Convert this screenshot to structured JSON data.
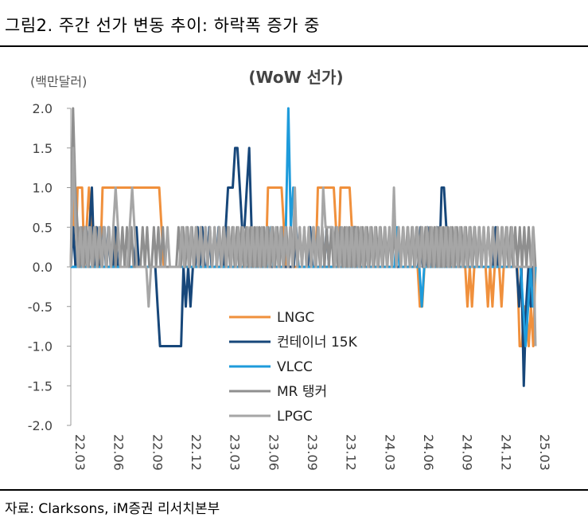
{
  "figure_title": "그림2.   주간 선가 변동 추이: 하락폭 증가 중",
  "source": "자료: Clarksons, iM증권 리서치본부",
  "chart_data": {
    "type": "line",
    "title": "(WoW 선가)",
    "ylabel": "(백만달러)",
    "xlabel": "",
    "ylim": [
      -2.0,
      2.0
    ],
    "yticks": [
      "2.0",
      "1.5",
      "1.0",
      "0.5",
      "0.0",
      "-0.5",
      "-1.0",
      "-1.5",
      "-2.0"
    ],
    "ytick_values": [
      2.0,
      1.5,
      1.0,
      0.5,
      0.0,
      -0.5,
      -1.0,
      -1.5,
      -2.0
    ],
    "xticks": [
      "22.03",
      "22.06",
      "22.09",
      "22.12",
      "23.03",
      "23.06",
      "23.09",
      "23.12",
      "24.03",
      "24.06",
      "24.09",
      "24.12",
      "25.03"
    ],
    "x_start": "22.03",
    "x_end": "25.03",
    "series": [
      {
        "name": "LNGC",
        "color": "#F0903C",
        "values": [
          0,
          1,
          0,
          1,
          1,
          1,
          0,
          0.5,
          1,
          0.5,
          0,
          0.5,
          0,
          0,
          1,
          1,
          1,
          1,
          1,
          1,
          1,
          1,
          1,
          1,
          1,
          1,
          1,
          1,
          1,
          1,
          1,
          1,
          1,
          1,
          1,
          1,
          1,
          1,
          1,
          1,
          0.5,
          0,
          0,
          0,
          0,
          0,
          0,
          0,
          0,
          0,
          0,
          0,
          0,
          0,
          0,
          0,
          0,
          0,
          0,
          0,
          0,
          0,
          0,
          0,
          0,
          0,
          0,
          0,
          0,
          0,
          0,
          0,
          0,
          0,
          0,
          0,
          0,
          0,
          0,
          0,
          0,
          0,
          0,
          0,
          0,
          0,
          0,
          1,
          1,
          1,
          1,
          1,
          1,
          1,
          0.5,
          0,
          0,
          0,
          0,
          0,
          0,
          0,
          0,
          0,
          0,
          0,
          0,
          0,
          0,
          1,
          1,
          1,
          1,
          1,
          1,
          1,
          1,
          0.5,
          0,
          1,
          1,
          1,
          1,
          1,
          0.5,
          0.5,
          0.5,
          0,
          0,
          0,
          0,
          0,
          0,
          0,
          0,
          0,
          0,
          0,
          0,
          0,
          0,
          0,
          0,
          0,
          0,
          0,
          0,
          0,
          0,
          0,
          0,
          0,
          0,
          0,
          -0.5,
          -0.5,
          0,
          0,
          0,
          0,
          0,
          0,
          0,
          0,
          0,
          0,
          0,
          0,
          0,
          0,
          0,
          0,
          0,
          0,
          0,
          -0.5,
          0,
          -0.5,
          0,
          0,
          0,
          0,
          0,
          0,
          -0.5,
          0,
          -0.5,
          0,
          0,
          0,
          -0.5,
          0,
          0,
          0,
          0,
          0,
          0,
          0,
          -1,
          -1,
          -0.5,
          -0.5,
          -1,
          -0.5,
          -1,
          0
        ]
      },
      {
        "name": "컨테이너 15K",
        "color": "#17477A",
        "values": [
          0,
          0.5,
          0,
          0.5,
          0,
          0,
          0.5,
          0,
          0.5,
          1,
          0,
          0.5,
          0,
          0,
          0.5,
          0,
          0.5,
          0,
          0,
          0.5,
          0,
          0,
          0,
          0,
          0,
          0,
          0,
          0,
          0.5,
          0,
          0,
          0,
          0,
          0,
          0,
          0,
          0,
          -0.5,
          -1,
          -1,
          -1,
          -1,
          -1,
          -1,
          -1,
          -1,
          -1,
          -1,
          0,
          -0.5,
          0,
          -0.5,
          0,
          0,
          0.5,
          0,
          0.5,
          0,
          0,
          0.5,
          0,
          0,
          0,
          0.5,
          0,
          0,
          0.5,
          1,
          1,
          1,
          1.5,
          1.5,
          1,
          0.5,
          0.5,
          1,
          1.5,
          0.5,
          0,
          0,
          0,
          0,
          0,
          0,
          0,
          0,
          0,
          0,
          0,
          0,
          0,
          0,
          0,
          0,
          0,
          0,
          0.5,
          0,
          0,
          0,
          0,
          0,
          0.5,
          0,
          0,
          0,
          0,
          0,
          0,
          0.5,
          0,
          0,
          0,
          0,
          0,
          0,
          0,
          0,
          0,
          0,
          0,
          0.5,
          0,
          0,
          0,
          0,
          0,
          0,
          0,
          0,
          0,
          0,
          0,
          0,
          0,
          0,
          0,
          0,
          0,
          0,
          0,
          0,
          0,
          0,
          0,
          0,
          0,
          0,
          0,
          0.5,
          0,
          0,
          0.5,
          0,
          0,
          0,
          0.5,
          0,
          1,
          1,
          0.5,
          0,
          0,
          0,
          0,
          0,
          0,
          0,
          0,
          0,
          0,
          0,
          0.5,
          0,
          0,
          0,
          0,
          0,
          0,
          0,
          0,
          0.5,
          0,
          0,
          0,
          0,
          0,
          0,
          0,
          0,
          0,
          -0.5,
          0,
          -1.5,
          -0.5,
          0,
          -0.5,
          0,
          0
        ]
      },
      {
        "name": "VLCC",
        "color": "#1E9BDB",
        "values": [
          0,
          0,
          0,
          0,
          0,
          0,
          0,
          0,
          0,
          0,
          0,
          0,
          0,
          0,
          0,
          0,
          0,
          0,
          0,
          0,
          0,
          0,
          0,
          0,
          0,
          0,
          0,
          0,
          0,
          0,
          0,
          0,
          0,
          0,
          0,
          0,
          0,
          0,
          0,
          0,
          0,
          0,
          0,
          0,
          0,
          0,
          0,
          0,
          0,
          0,
          0,
          0,
          0,
          0,
          0,
          0,
          0,
          0,
          0,
          0,
          0,
          0,
          0,
          0,
          0,
          0,
          0,
          0,
          0,
          0,
          0,
          0,
          0,
          0,
          0,
          0,
          0,
          0,
          0,
          0,
          0,
          0.5,
          0,
          0,
          0,
          0,
          0,
          0.5,
          2,
          0.5,
          1,
          0.5,
          0,
          0,
          0,
          0,
          0,
          0,
          0,
          0,
          0,
          0,
          0,
          0,
          0,
          0,
          0,
          0,
          0,
          0,
          0,
          0,
          0,
          0,
          0,
          0,
          0,
          0,
          0,
          0,
          0,
          0,
          0,
          0,
          0,
          0,
          0,
          0,
          0,
          0,
          0,
          0,
          0.5,
          0,
          0,
          0,
          0,
          0,
          0,
          0,
          0,
          0,
          -0.5,
          0,
          0,
          0,
          0,
          0,
          0,
          0,
          0,
          0,
          0,
          0,
          0,
          0,
          0,
          0,
          0,
          0,
          0,
          0,
          0,
          0,
          0,
          0,
          0,
          0,
          0,
          0,
          0,
          0,
          0,
          0,
          0,
          0,
          0,
          0,
          0,
          0,
          0,
          0,
          0,
          -0.5,
          -1,
          -0.5,
          0,
          -0.5,
          0
        ]
      },
      {
        "name": "MR 탱커",
        "color": "#8F8F8F",
        "values": [
          0,
          2,
          1,
          0.5,
          0,
          0.5,
          0,
          0.5,
          0,
          0.5,
          0,
          0.5,
          0,
          0.5,
          0,
          0.5,
          0,
          0.5,
          0,
          0.5,
          0,
          0.5,
          0,
          0.5,
          0,
          0.5,
          0,
          0.5,
          0,
          0,
          0,
          0,
          0.5,
          0,
          0.5,
          0,
          0,
          0.5,
          0,
          0.5,
          0,
          0.5,
          0,
          0,
          0,
          0,
          0,
          0,
          0.5,
          0,
          0.5,
          0,
          0.5,
          0,
          0.5,
          0,
          0.5,
          0,
          0.5,
          0,
          0.5,
          0,
          0.5,
          0,
          0.5,
          0,
          0.5,
          0,
          0.5,
          0,
          0.5,
          0,
          0.5,
          0,
          0.5,
          0,
          0.5,
          0,
          0.5,
          0,
          0.5,
          0,
          0.5,
          0,
          0.5,
          0,
          0.5,
          0,
          0.5,
          0,
          0.5,
          0,
          0.5,
          0,
          0.5,
          0,
          0.5,
          0,
          0.5,
          0,
          0.5,
          0,
          0.5,
          0,
          0.5,
          0,
          0.5,
          0,
          0.5,
          0,
          0.5,
          0,
          0.5,
          0,
          0.5,
          0,
          0.5,
          0,
          0.5,
          0,
          0.5,
          0,
          0.5,
          0,
          0.5,
          0,
          0.5,
          0,
          0.5,
          0,
          0.5,
          0,
          0.5,
          0,
          0.5,
          0,
          0.5,
          0,
          0.5,
          0,
          0.5,
          0,
          0.5,
          0,
          0.5,
          0,
          0.5,
          0,
          0.5,
          0,
          0.5,
          0,
          0.5,
          0,
          0.5,
          0,
          0.5,
          0,
          0.5,
          0,
          0.5,
          0,
          0.5,
          0,
          0.5,
          0,
          0.5,
          0,
          0.5,
          0,
          0.5,
          0,
          0.5,
          0,
          0.5,
          0,
          0.5,
          0,
          0.5,
          0,
          0.5,
          0,
          0.5,
          0,
          0.5,
          0,
          0.5,
          0,
          0.5,
          0,
          0.5,
          0,
          0.5,
          0,
          0.5,
          0,
          0.5,
          0,
          0.5,
          0,
          0.5,
          0,
          0.5,
          0,
          0.5,
          0,
          0.5,
          0
        ]
      },
      {
        "name": "LPGC",
        "color": "#A6A6A6",
        "values": [
          0,
          1.5,
          0.5,
          0,
          0.5,
          0,
          0.5,
          0,
          0.5,
          0,
          0.5,
          0,
          0.5,
          0,
          0.5,
          0,
          0.5,
          0,
          0.5,
          1,
          0.5,
          0,
          0,
          0,
          0,
          0.5,
          1,
          0.5,
          0,
          0,
          0,
          0,
          0,
          -0.5,
          0,
          0,
          0,
          0,
          0,
          0,
          0,
          0.5,
          0,
          0,
          0,
          0,
          0,
          0.5,
          0,
          0.5,
          0,
          0.5,
          0,
          0.5,
          0,
          0.5,
          0,
          0.5,
          0,
          0.5,
          0,
          0.5,
          0,
          0.5,
          0,
          0.5,
          0,
          0.5,
          0,
          0.5,
          0,
          0.5,
          0,
          0.5,
          0,
          0.5,
          0,
          0.5,
          0,
          0.5,
          0,
          0.5,
          0,
          0.5,
          0,
          0.5,
          0,
          0.5,
          0,
          0.5,
          0,
          0.5,
          0,
          0.5,
          0,
          1,
          0,
          0.5,
          0,
          0.5,
          0,
          0.5,
          0,
          0.5,
          0,
          0.5,
          0,
          1,
          0.5,
          0.5,
          0.5,
          0.5,
          0,
          0.5,
          0,
          0.5,
          0,
          0.5,
          0,
          0.5,
          0,
          0.5,
          0,
          0.5,
          0,
          0.5,
          0,
          0.5,
          0,
          0.5,
          0,
          0.5,
          0,
          0.5,
          0,
          0.5,
          0,
          1,
          0,
          0.5,
          0,
          0.5,
          0,
          0.5,
          0,
          0.5,
          0,
          0.5,
          0,
          0.5,
          0,
          0.5,
          0,
          0.5,
          0,
          0.5,
          0,
          0.5,
          0,
          0.5,
          0,
          0.5,
          0,
          0.5,
          0,
          0.5,
          0,
          0.5,
          0,
          0.5,
          0,
          0.5,
          0,
          0.5,
          0,
          0.5,
          0,
          0.5,
          0,
          0.5,
          0,
          0.5,
          0,
          0.5,
          0,
          0.5,
          0,
          0.5,
          0,
          0,
          0,
          0,
          0,
          0,
          0,
          0,
          0.5,
          -1
        ]
      }
    ]
  }
}
